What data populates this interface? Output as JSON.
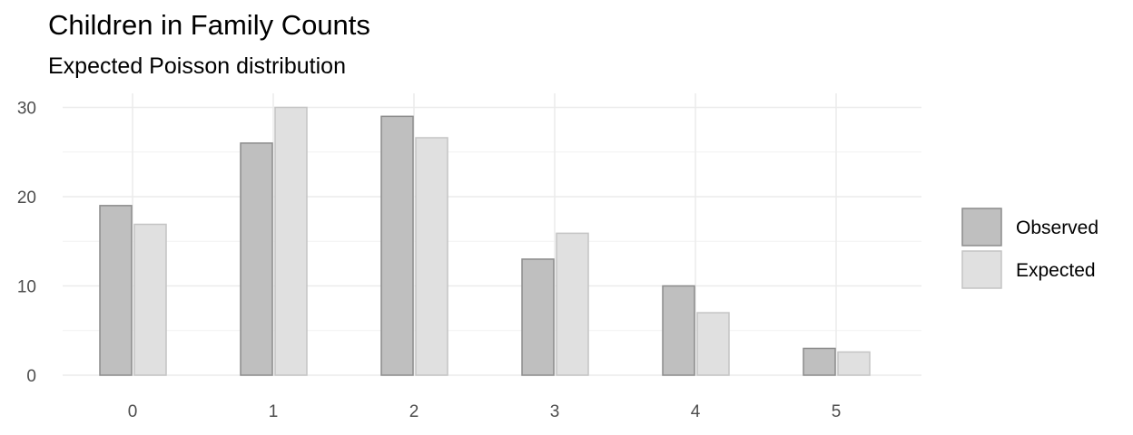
{
  "chart_data": {
    "type": "bar",
    "title": "Children in Family Counts",
    "subtitle": "Expected Poisson distribution",
    "xlabel": "",
    "ylabel": "",
    "categories": [
      "0",
      "1",
      "2",
      "3",
      "4",
      "5"
    ],
    "series": [
      {
        "name": "Observed",
        "values": [
          19,
          26,
          29,
          13,
          10,
          3
        ],
        "fill": "#bfbfbf",
        "stroke": "#8c8c8c"
      },
      {
        "name": "Expected",
        "values": [
          16.9,
          30.0,
          26.6,
          15.9,
          7.0,
          2.6
        ],
        "fill": "#e0e0e0",
        "stroke": "#c4c4c4"
      }
    ],
    "ylim": [
      0,
      30
    ],
    "yticks": [
      0,
      10,
      20,
      30
    ],
    "grid": true,
    "legend_position": "right"
  }
}
